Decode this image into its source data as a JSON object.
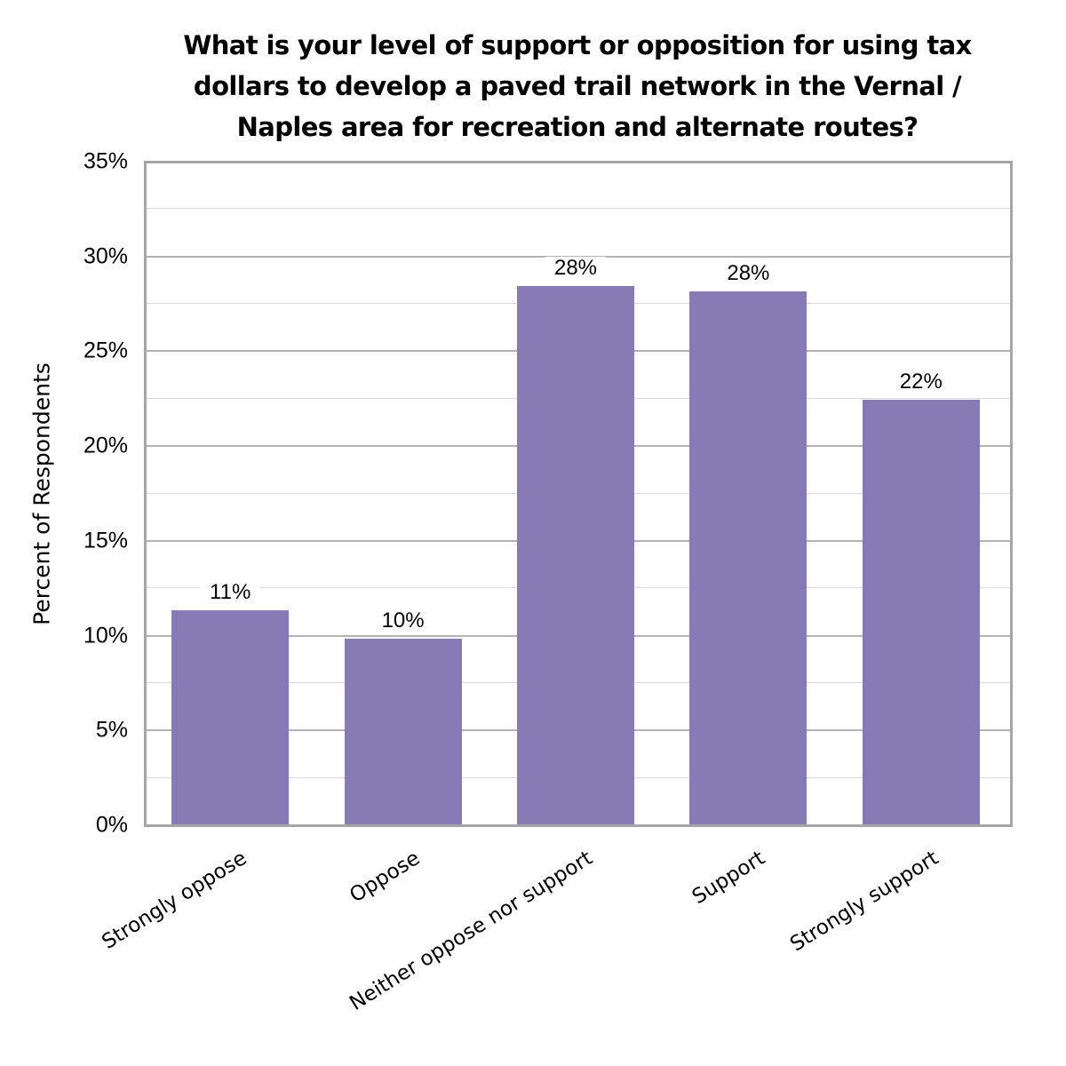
{
  "chart_data": {
    "type": "bar",
    "title": "What is your level of support or opposition for using tax dollars to develop a paved trail network in the Vernal / Naples area for recreation and alternate routes?",
    "title_lines": [
      "What is your level of support or opposition for using tax",
      "dollars to develop a paved trail network in the Vernal /",
      "Naples area for recreation and alternate routes?"
    ],
    "xlabel": "",
    "ylabel": "Percent of Respondents",
    "categories": [
      "Strongly oppose",
      "Oppose",
      "Neither oppose nor support",
      "Support",
      "Strongly support"
    ],
    "values": [
      11.3,
      9.8,
      28.4,
      28.1,
      22.4
    ],
    "data_labels": [
      "11%",
      "10%",
      "28%",
      "28%",
      "22%"
    ],
    "ylim": [
      0,
      35
    ],
    "yticks": [
      "0%",
      "5%",
      "10%",
      "15%",
      "20%",
      "25%",
      "30%",
      "35%"
    ],
    "grid": true,
    "legend": "none",
    "bar_color": "#877bb5"
  }
}
